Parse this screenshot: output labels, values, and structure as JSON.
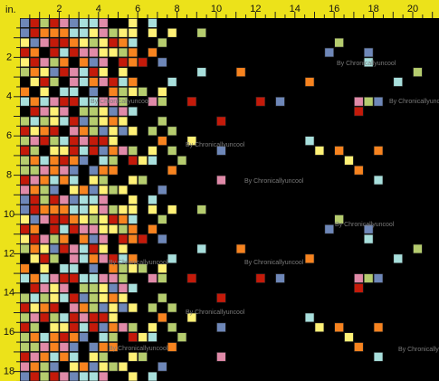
{
  "ruler": {
    "unit": "in.",
    "top_labels": [
      "2",
      "4",
      "6",
      "8",
      "10",
      "12",
      "14",
      "16",
      "18",
      "20"
    ],
    "left_labels": [
      "2",
      "4",
      "6",
      "8",
      "10",
      "12",
      "14",
      "16",
      "18"
    ]
  },
  "watermark": "By Chronicallyuncool"
}
